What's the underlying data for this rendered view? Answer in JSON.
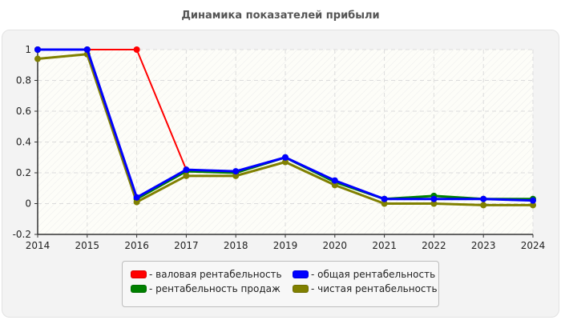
{
  "chart_data": {
    "type": "line",
    "title": "Динамика показателей прибыли",
    "xlabel": "",
    "ylabel": "",
    "x": [
      "2014",
      "2015",
      "2016",
      "2017",
      "2018",
      "2019",
      "2020",
      "2021",
      "2022",
      "2023",
      "2024"
    ],
    "ylim": [
      -0.2,
      1
    ],
    "yticks": [
      "1",
      "0.8",
      "0.6",
      "0.4",
      "0.2",
      "0",
      "-0.2"
    ],
    "grid": true,
    "legend_position": "bottom",
    "series": [
      {
        "name": "валовая рентабельность",
        "color": "#ff0000",
        "values": [
          1,
          1,
          1,
          0.22,
          null,
          null,
          null,
          null,
          null,
          null,
          null
        ]
      },
      {
        "name": "рентабельность продаж",
        "color": "#008000",
        "values": [
          1,
          1,
          0.03,
          0.21,
          0.2,
          0.3,
          0.14,
          0.03,
          0.05,
          0.03,
          0.03
        ]
      },
      {
        "name": "общая рентабельность",
        "color": "#0000ff",
        "values": [
          1,
          1,
          0.04,
          0.22,
          0.21,
          0.3,
          0.15,
          0.03,
          0.03,
          0.03,
          0.02
        ]
      },
      {
        "name": "чистая рентабельность",
        "color": "#808000",
        "values": [
          0.94,
          0.97,
          0.01,
          0.18,
          0.18,
          0.27,
          0.12,
          0.0,
          0.0,
          -0.01,
          -0.01
        ]
      }
    ]
  },
  "legend": {
    "items": [
      {
        "label": "- валовая рентабельность",
        "color": "#ff0000"
      },
      {
        "label": "- общая рентабельность",
        "color": "#0000ff"
      },
      {
        "label": "- рентабельность продаж",
        "color": "#008000"
      },
      {
        "label": "- чистая рентабельность",
        "color": "#808000"
      }
    ]
  }
}
